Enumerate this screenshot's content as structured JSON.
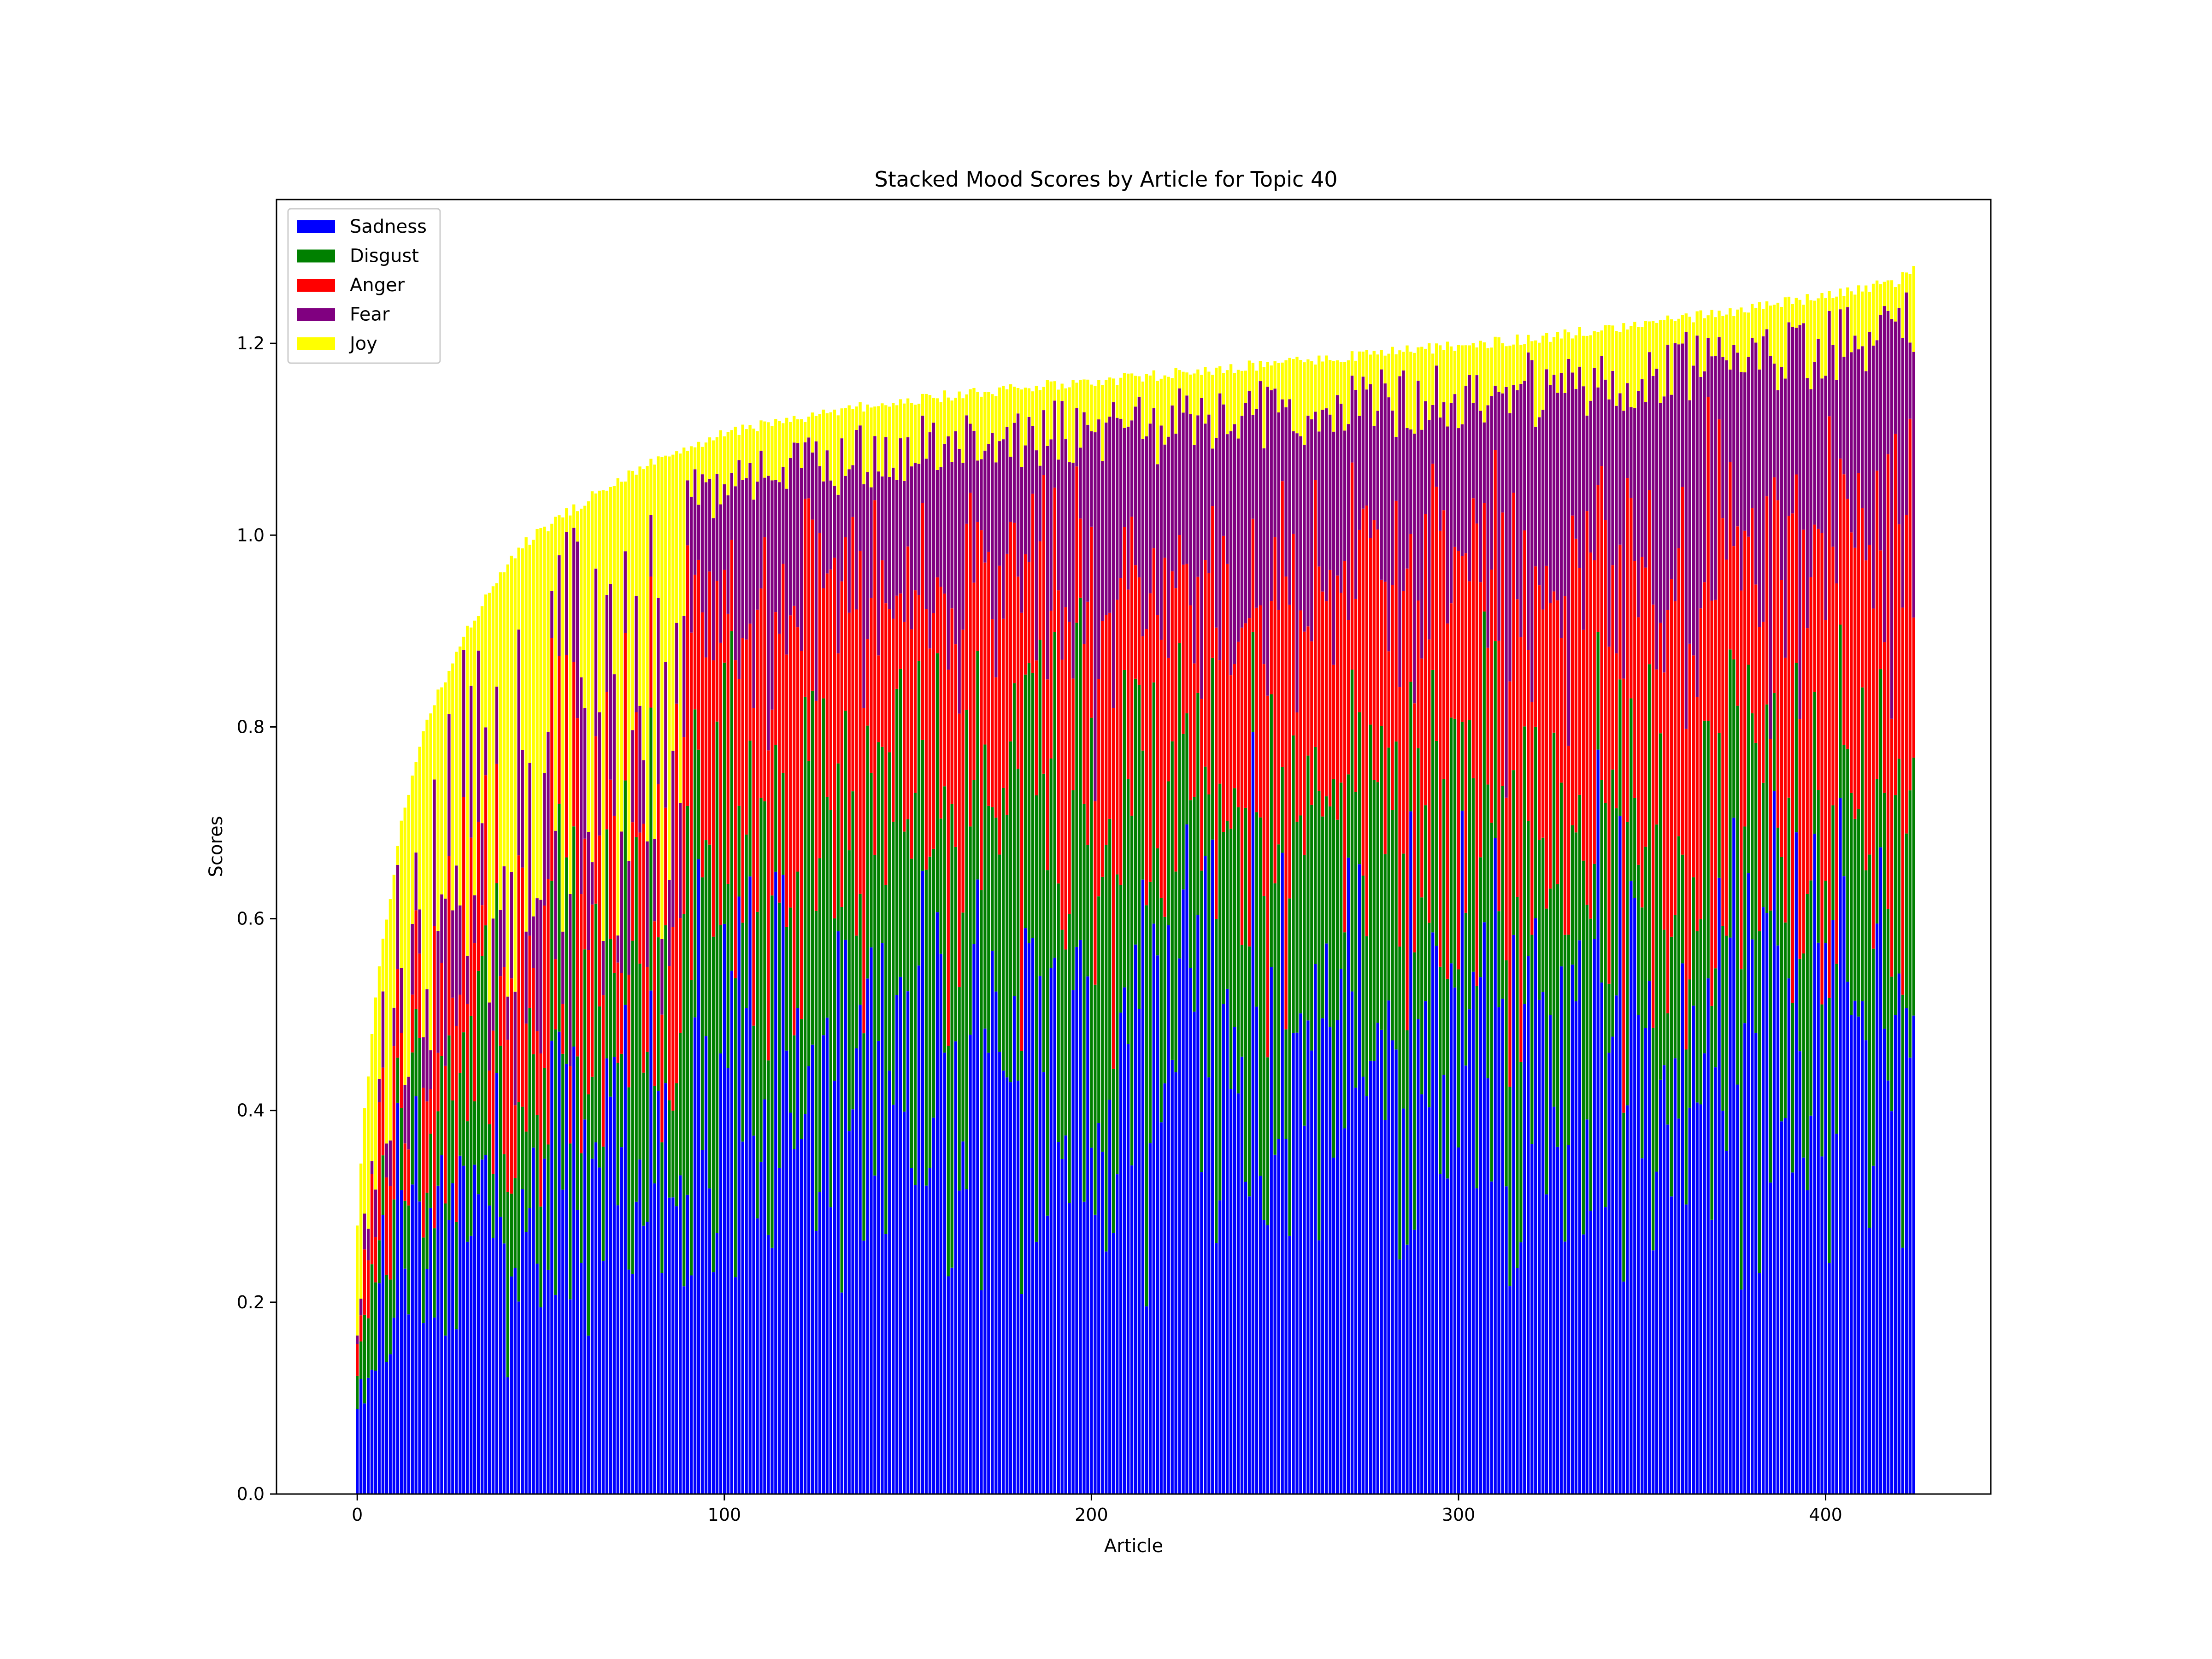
{
  "chart_data": {
    "type": "bar",
    "stacked": true,
    "title": "Stacked Mood Scores by Article for Topic 40",
    "xlabel": "Article",
    "ylabel": "Scores",
    "xlim": [
      -22,
      445
    ],
    "ylim": [
      0,
      1.35
    ],
    "x_ticks": [
      0,
      100,
      200,
      300,
      400
    ],
    "y_ticks": [
      0.0,
      0.2,
      0.4,
      0.6,
      0.8,
      1.0,
      1.2
    ],
    "y_tick_labels": [
      "0.0",
      "0.2",
      "0.4",
      "0.6",
      "0.8",
      "1.0",
      "1.2"
    ],
    "grid": false,
    "legend_position": "top-left",
    "article_count": 425,
    "series": [
      {
        "name": "Sadness",
        "color": "#0000ff"
      },
      {
        "name": "Disgust",
        "color": "#008000"
      },
      {
        "name": "Anger",
        "color": "#ff0000"
      },
      {
        "name": "Fear",
        "color": "#800080"
      },
      {
        "name": "Joy",
        "color": "#ffff00"
      }
    ],
    "total_profile": {
      "x": [
        0,
        2,
        5,
        8,
        12,
        16,
        20,
        25,
        30,
        35,
        40,
        45,
        50,
        60,
        70,
        80,
        90,
        100,
        110,
        120,
        140,
        160,
        180,
        200,
        240,
        280,
        320,
        360,
        400,
        420,
        424
      ],
      "y": [
        0.28,
        0.4,
        0.52,
        0.6,
        0.7,
        0.76,
        0.82,
        0.86,
        0.9,
        0.935,
        0.965,
        0.99,
        1.005,
        1.03,
        1.055,
        1.075,
        1.09,
        1.105,
        1.115,
        1.12,
        1.135,
        1.145,
        1.153,
        1.16,
        1.175,
        1.19,
        1.205,
        1.225,
        1.25,
        1.265,
        1.28
      ]
    },
    "component_profile": {
      "x": [
        0,
        10,
        20,
        40,
        60,
        100,
        150,
        200,
        250,
        300,
        350,
        400,
        424
      ],
      "sadness": [
        0.14,
        0.25,
        0.3,
        0.34,
        0.36,
        0.38,
        0.4,
        0.41,
        0.42,
        0.43,
        0.43,
        0.44,
        0.45
      ],
      "disgust": [
        0.06,
        0.08,
        0.12,
        0.16,
        0.2,
        0.24,
        0.24,
        0.23,
        0.22,
        0.21,
        0.2,
        0.19,
        0.18
      ],
      "anger": [
        0.04,
        0.1,
        0.14,
        0.16,
        0.17,
        0.2,
        0.21,
        0.22,
        0.23,
        0.24,
        0.25,
        0.26,
        0.27
      ],
      "fear": [
        0.02,
        0.05,
        0.08,
        0.1,
        0.12,
        0.13,
        0.14,
        0.15,
        0.16,
        0.17,
        0.17,
        0.18,
        0.18
      ]
    },
    "joy_floor": 0.015
  }
}
